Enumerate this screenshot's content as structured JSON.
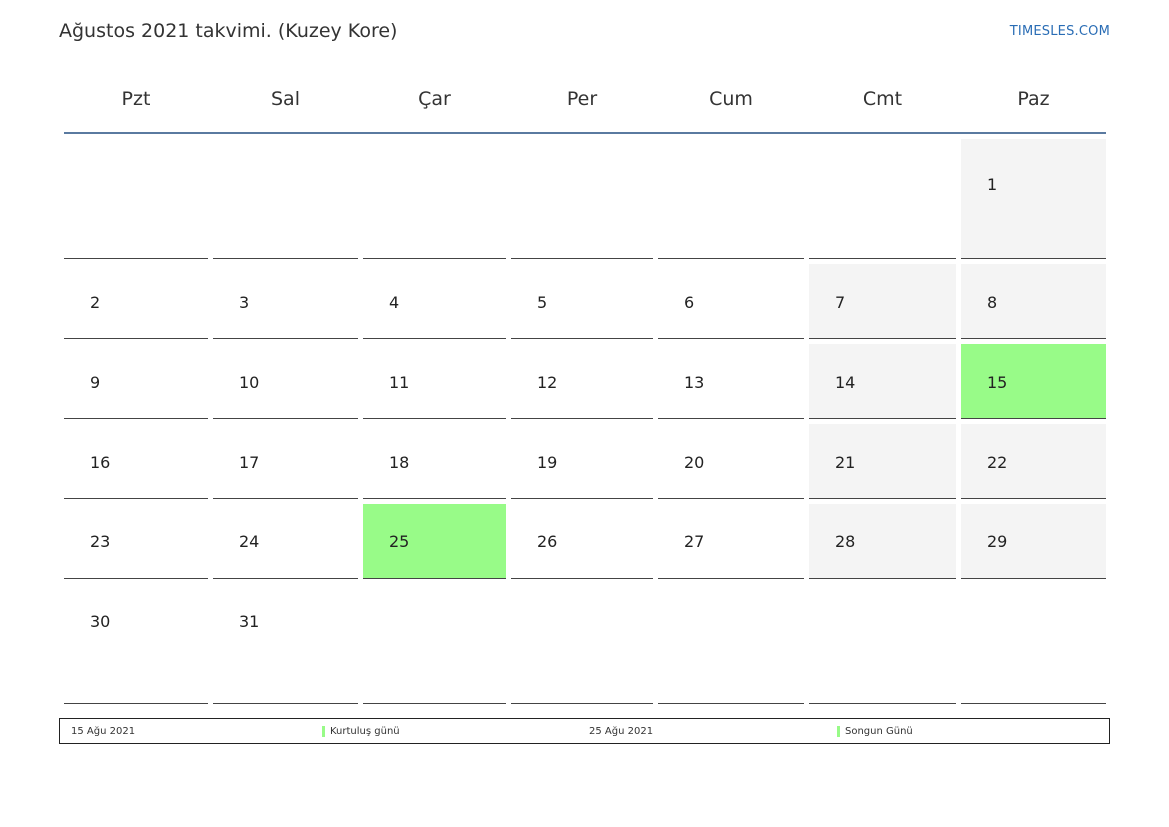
{
  "title": "Ağustos 2021 takvimi. (Kuzey Kore)",
  "brand": "TIMESLES.COM",
  "colors": {
    "holiday": "#98fb88",
    "weekend": "#f4f4f4",
    "header_rule": "#5a7aa0",
    "brand": "#2a6db5"
  },
  "weekdays": [
    "Pzt",
    "Sal",
    "Çar",
    "Per",
    "Cum",
    "Cmt",
    "Paz"
  ],
  "weeks": [
    [
      "",
      "",
      "",
      "",
      "",
      "",
      "1"
    ],
    [
      "2",
      "3",
      "4",
      "5",
      "6",
      "7",
      "8"
    ],
    [
      "9",
      "10",
      "11",
      "12",
      "13",
      "14",
      "15"
    ],
    [
      "16",
      "17",
      "18",
      "19",
      "20",
      "21",
      "22"
    ],
    [
      "23",
      "24",
      "25",
      "26",
      "27",
      "28",
      "29"
    ],
    [
      "30",
      "31",
      "",
      "",
      "",
      "",
      ""
    ]
  ],
  "holidays": [
    "15",
    "25"
  ],
  "legend": [
    {
      "date": "15 Ağu 2021",
      "name": "Kurtuluş günü"
    },
    {
      "date": "25 Ağu 2021",
      "name": "Songun Günü"
    }
  ]
}
